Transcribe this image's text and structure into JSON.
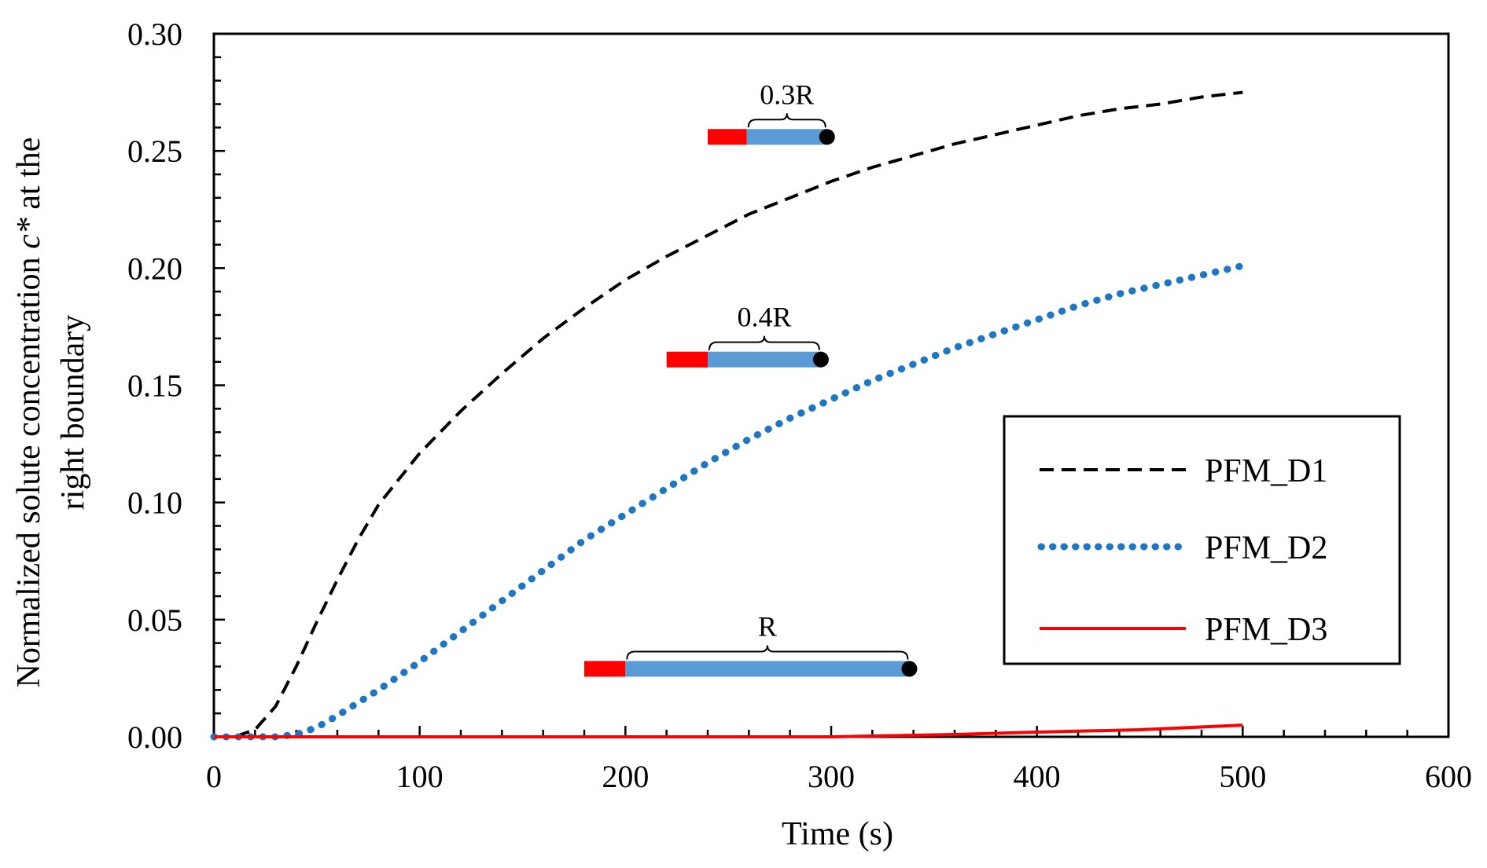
{
  "chart_data": {
    "type": "line",
    "title": "",
    "xlabel": "Time (s)",
    "ylabel_line1_prefix": "Normalized solute concentration ",
    "ylabel_line1_var": "c*",
    "ylabel_line1_suffix": " at the",
    "ylabel_line2": "right boundary",
    "xlim": [
      0,
      600
    ],
    "ylim": [
      0,
      0.3
    ],
    "x_ticks": [
      0,
      100,
      200,
      300,
      400,
      500,
      600
    ],
    "x_tick_labels": [
      "0",
      "100",
      "200",
      "300",
      "400",
      "500",
      "600"
    ],
    "y_ticks": [
      0,
      0.05,
      0.1,
      0.15,
      0.2,
      0.25,
      0.3
    ],
    "y_tick_labels": [
      "0.00",
      "0.05",
      "0.10",
      "0.15",
      "0.20",
      "0.25",
      "0.30"
    ],
    "grid": false,
    "legend_position": "center-right",
    "series": [
      {
        "name": "PFM_D1",
        "style": "dashed",
        "color": "#000000",
        "x": [
          0,
          10,
          20,
          30,
          40,
          50,
          60,
          70,
          80,
          90,
          100,
          120,
          140,
          160,
          180,
          200,
          220,
          240,
          260,
          280,
          300,
          320,
          340,
          360,
          380,
          400,
          420,
          440,
          460,
          480,
          500
        ],
        "y": [
          0,
          0,
          0.003,
          0.013,
          0.03,
          0.049,
          0.067,
          0.084,
          0.099,
          0.11,
          0.121,
          0.139,
          0.155,
          0.17,
          0.183,
          0.195,
          0.205,
          0.214,
          0.223,
          0.23,
          0.237,
          0.243,
          0.248,
          0.253,
          0.257,
          0.261,
          0.265,
          0.268,
          0.27,
          0.273,
          0.275
        ]
      },
      {
        "name": "PFM_D2",
        "style": "dotted",
        "color": "#1f77c4",
        "x": [
          0,
          20,
          30,
          40,
          50,
          60,
          80,
          100,
          120,
          140,
          160,
          180,
          200,
          220,
          240,
          260,
          280,
          300,
          320,
          340,
          360,
          380,
          400,
          420,
          440,
          460,
          480,
          500
        ],
        "y": [
          0,
          0,
          0,
          0.001,
          0.004,
          0.009,
          0.02,
          0.032,
          0.045,
          0.058,
          0.071,
          0.084,
          0.095,
          0.106,
          0.117,
          0.127,
          0.136,
          0.144,
          0.152,
          0.159,
          0.166,
          0.172,
          0.178,
          0.184,
          0.189,
          0.193,
          0.197,
          0.201
        ]
      },
      {
        "name": "PFM_D3",
        "style": "solid",
        "color": "#ff0000",
        "x": [
          0,
          100,
          200,
          300,
          330,
          360,
          400,
          450,
          500
        ],
        "y": [
          0,
          0,
          0,
          0,
          0.0005,
          0.001,
          0.002,
          0.003,
          0.005
        ]
      }
    ],
    "annotations": [
      {
        "label": "0.3R",
        "name": "domain-d1",
        "red_start": 240,
        "red_end": 259,
        "blue_end": 298,
        "y": 0.256
      },
      {
        "label": "0.4R",
        "name": "domain-d2",
        "red_start": 220,
        "red_end": 240,
        "blue_end": 295,
        "y": 0.161
      },
      {
        "label": "R",
        "name": "domain-d3",
        "red_start": 180,
        "red_end": 200,
        "blue_end": 338,
        "y": 0.029
      }
    ]
  }
}
